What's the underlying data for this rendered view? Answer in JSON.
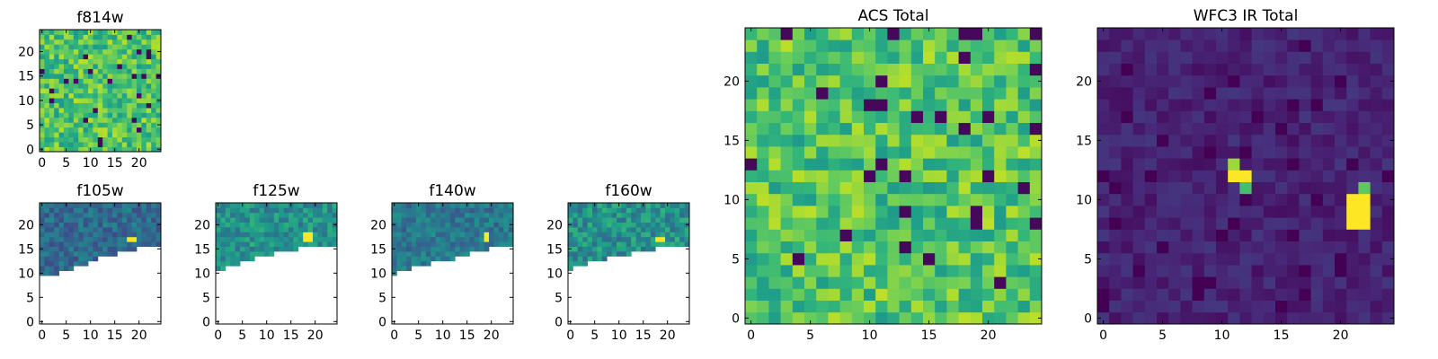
{
  "colormap": {
    "name": "viridis",
    "stops": [
      "#440154",
      "#482878",
      "#3e4989",
      "#31688e",
      "#26828e",
      "#1f9e89",
      "#35b779",
      "#6ece58",
      "#b5de2b",
      "#fde725"
    ]
  },
  "chart_data": [
    {
      "type": "heatmap",
      "title": "f814w",
      "grid_size": 25,
      "xlim": [
        0,
        24
      ],
      "ylim": [
        0,
        24
      ],
      "xticks": [
        0,
        5,
        10,
        15,
        20
      ],
      "yticks": [
        0,
        5,
        10,
        15,
        20
      ],
      "coverage_rows_from_top": [],
      "pattern": "noise",
      "noise_mean": 0.72,
      "noise_spread": 0.18,
      "hot_spots": []
    },
    {
      "type": "heatmap",
      "title": "f105w",
      "grid_size": 25,
      "xlim": [
        0,
        24
      ],
      "ylim": [
        0,
        24
      ],
      "xticks": [
        0,
        5,
        10,
        15,
        20
      ],
      "yticks": [
        0,
        5,
        10,
        15,
        20
      ],
      "pattern": "noise",
      "noise_mean": 0.35,
      "noise_spread": 0.12,
      "coverage_rows_from_top": [
        15,
        15,
        15,
        15,
        14,
        14,
        14,
        13,
        13,
        13,
        12,
        12,
        11,
        11,
        11,
        11,
        10,
        10,
        10,
        10,
        9,
        9,
        9,
        9,
        9
      ],
      "hot_spots": [
        {
          "x": 18,
          "y": 17,
          "w": 2,
          "h": 1,
          "value": 1.0
        }
      ]
    },
    {
      "type": "heatmap",
      "title": "f125w",
      "grid_size": 25,
      "xlim": [
        0,
        24
      ],
      "ylim": [
        0,
        24
      ],
      "xticks": [
        0,
        5,
        10,
        15,
        20
      ],
      "yticks": [
        0,
        5,
        10,
        15,
        20
      ],
      "pattern": "noise",
      "noise_mean": 0.5,
      "noise_spread": 0.14,
      "coverage_rows_from_top": [
        14,
        14,
        13,
        13,
        13,
        12,
        12,
        12,
        11,
        11,
        11,
        11,
        10,
        10,
        10,
        10,
        10,
        9,
        9,
        9,
        9,
        9,
        9,
        9,
        9
      ],
      "hot_spots": [
        {
          "x": 18,
          "y": 17,
          "w": 2,
          "h": 2,
          "value": 1.0
        }
      ]
    },
    {
      "type": "heatmap",
      "title": "f140w",
      "grid_size": 25,
      "xlim": [
        0,
        24
      ],
      "ylim": [
        0,
        24
      ],
      "xticks": [
        0,
        5,
        10,
        15,
        20
      ],
      "yticks": [
        0,
        5,
        10,
        15,
        20
      ],
      "pattern": "noise",
      "noise_mean": 0.4,
      "noise_spread": 0.12,
      "coverage_rows_from_top": [
        15,
        14,
        14,
        14,
        13,
        13,
        13,
        13,
        12,
        12,
        12,
        12,
        12,
        11,
        11,
        11,
        10,
        10,
        10,
        10,
        9,
        9,
        9,
        9,
        9
      ],
      "hot_spots": [
        {
          "x": 19,
          "y": 17,
          "w": 1,
          "h": 2,
          "value": 1.0
        }
      ]
    },
    {
      "type": "heatmap",
      "title": "f160w",
      "grid_size": 25,
      "xlim": [
        0,
        24
      ],
      "ylim": [
        0,
        24
      ],
      "xticks": [
        0,
        5,
        10,
        15,
        20
      ],
      "yticks": [
        0,
        5,
        10,
        15,
        20
      ],
      "pattern": "noise",
      "noise_mean": 0.5,
      "noise_spread": 0.16,
      "coverage_rows_from_top": [
        14,
        13,
        13,
        13,
        12,
        12,
        12,
        12,
        11,
        11,
        11,
        11,
        11,
        10,
        10,
        10,
        10,
        10,
        9,
        9,
        9,
        9,
        9,
        9,
        9
      ],
      "hot_spots": [
        {
          "x": 18,
          "y": 17,
          "w": 2,
          "h": 1,
          "value": 1.0
        }
      ]
    },
    {
      "type": "heatmap",
      "title": "ACS Total",
      "grid_size": 25,
      "xlim": [
        0,
        24
      ],
      "ylim": [
        0,
        24
      ],
      "xticks": [
        0,
        5,
        10,
        15,
        20
      ],
      "yticks": [
        0,
        5,
        10,
        15,
        20
      ],
      "coverage_rows_from_top": [],
      "pattern": "noise",
      "noise_mean": 0.72,
      "noise_spread": 0.18,
      "hot_spots": []
    },
    {
      "type": "heatmap",
      "title": "WFC3 IR Total",
      "grid_size": 25,
      "xlim": [
        0,
        24
      ],
      "ylim": [
        0,
        24
      ],
      "xticks": [
        0,
        5,
        10,
        15,
        20
      ],
      "yticks": [
        0,
        5,
        10,
        15,
        20
      ],
      "coverage_rows_from_top": [],
      "pattern": "noise",
      "noise_mean": 0.1,
      "noise_spread": 0.06,
      "hot_spots": [
        {
          "x": 11,
          "y": 12,
          "w": 2,
          "h": 1,
          "value": 1.0
        },
        {
          "x": 11,
          "y": 13,
          "w": 1,
          "h": 1,
          "value": 0.85
        },
        {
          "x": 12,
          "y": 11,
          "w": 1,
          "h": 1,
          "value": 0.7
        },
        {
          "x": 21,
          "y": 8,
          "w": 2,
          "h": 3,
          "value": 1.0
        },
        {
          "x": 22,
          "y": 11,
          "w": 1,
          "h": 1,
          "value": 0.75
        }
      ]
    }
  ]
}
